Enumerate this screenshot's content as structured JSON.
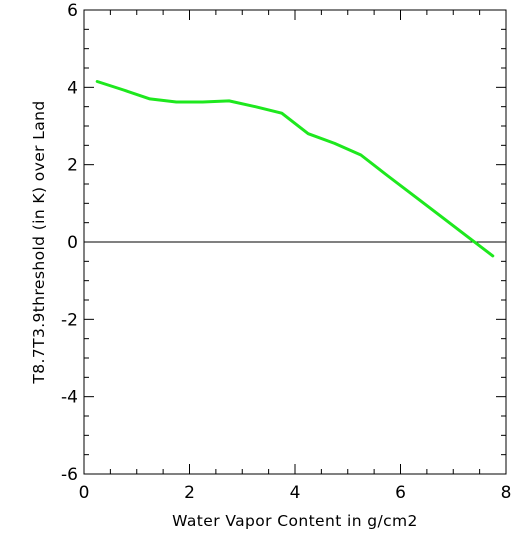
{
  "chart_data": {
    "type": "line",
    "title": "",
    "xlabel": "Water Vapor Content in g/cm2",
    "ylabel": "T8.7T3.9threshold (in K) over Land",
    "xlim": [
      0,
      8
    ],
    "ylim": [
      -6,
      6
    ],
    "x_ticks": [
      "0",
      "2",
      "4",
      "6",
      "8"
    ],
    "y_ticks": [
      "6",
      "4",
      "2",
      "0",
      "-2",
      "-4",
      "-6"
    ],
    "reference_line": {
      "y": 0,
      "color": "#000000"
    },
    "grid": false,
    "legend": "none",
    "series": [
      {
        "color": "#1ee81e",
        "x": [
          0.25,
          0.75,
          1.25,
          1.75,
          2.25,
          2.75,
          3.25,
          3.75,
          4.25,
          4.75,
          5.25,
          5.75,
          6.25,
          6.75,
          7.25,
          7.75
        ],
        "y": [
          4.15,
          3.93,
          3.7,
          3.62,
          3.62,
          3.65,
          3.5,
          3.33,
          2.8,
          2.55,
          2.25,
          1.72,
          1.2,
          0.68,
          0.16,
          -0.36
        ]
      }
    ]
  }
}
